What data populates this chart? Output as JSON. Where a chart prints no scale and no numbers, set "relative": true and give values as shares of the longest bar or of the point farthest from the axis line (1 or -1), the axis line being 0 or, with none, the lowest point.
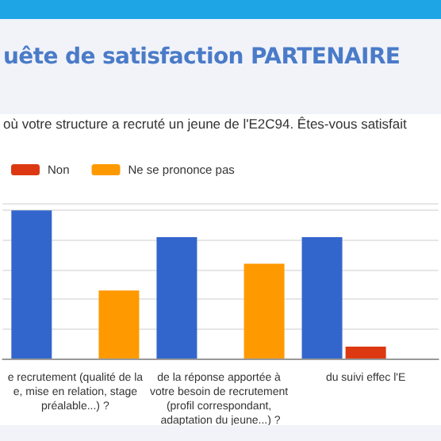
{
  "chart_data": {
    "type": "bar",
    "title": "uête de satisfaction PARTENAIRE",
    "subtitle": "où votre structure a recruté un jeune de l'E2C94. Êtes-vous satisfait",
    "categories": [
      "e recrutement (qualité de la e, mise en relation, stage préalable...) ?",
      "de la réponse apportée à votre besoin de recrutement (profil correspondant, adaptation du jeune...) ?",
      "du suivi effec l'E"
    ],
    "relative": true,
    "grid": "y",
    "legend": "top left",
    "series": [
      {
        "color": "#3366cc",
        "values": [
          1,
          0.82,
          0.82
        ]
      },
      {
        "name": "Non",
        "color": "#dc3912",
        "values": [
          0,
          0,
          0.08
        ]
      },
      {
        "name": "Ne se prononce pas",
        "color": "#ff9900",
        "values": [
          0.46,
          0.64,
          null
        ]
      }
    ]
  }
}
